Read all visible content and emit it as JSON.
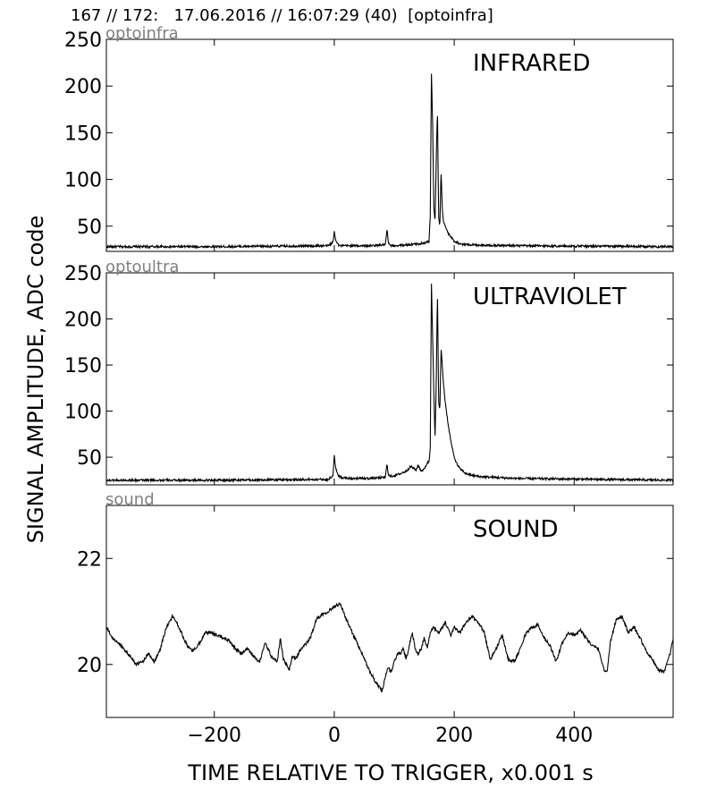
{
  "header": {
    "text": "167 // 172:   17.06.2016 // 16:07:29 (40)  [optoinfra]"
  },
  "figure": {
    "ylabel": "SIGNAL AMPLITUDE,  ADC code",
    "xlabel": "TIME RELATIVE TO TRIGGER,   x0.001 s"
  },
  "chart_data": [
    {
      "type": "line",
      "channel": "optoinfra",
      "title": "INFRARED",
      "xlim": [
        -380,
        565
      ],
      "ylim": [
        23,
        250
      ],
      "yticks": [
        50,
        100,
        150,
        200,
        250
      ],
      "xticks": [
        -200,
        0,
        200,
        400
      ],
      "show_xtick_labels": false,
      "baseline": 28,
      "noise": 1.2,
      "color": "#000000",
      "series": [
        {
          "x": [
            -380,
            -200,
            -10,
            -2,
            0,
            2,
            8,
            60,
            85,
            88,
            90,
            93,
            100,
            140,
            150,
            155,
            158,
            160,
            162,
            164,
            166,
            168,
            170,
            172,
            174,
            176,
            178,
            180,
            182,
            185,
            190,
            195,
            200,
            210,
            230,
            300,
            565
          ],
          "y": [
            28,
            28,
            29,
            33,
            44,
            36,
            29,
            29,
            30,
            46,
            33,
            29,
            29,
            31,
            32,
            33,
            34,
            60,
            215,
            160,
            70,
            55,
            120,
            176,
            60,
            50,
            110,
            70,
            55,
            50,
            42,
            38,
            34,
            31,
            30,
            29,
            28
          ]
        }
      ]
    },
    {
      "type": "line",
      "channel": "optoultra",
      "title": "ULTRAVIOLET",
      "xlim": [
        -380,
        565
      ],
      "ylim": [
        20,
        250
      ],
      "yticks": [
        50,
        100,
        150,
        200,
        250
      ],
      "xticks": [
        -200,
        0,
        200,
        400
      ],
      "show_xtick_labels": false,
      "baseline": 25,
      "noise": 1.2,
      "color": "#000000",
      "series": [
        {
          "x": [
            -380,
            -200,
            -10,
            -2,
            0,
            2,
            6,
            12,
            30,
            60,
            85,
            88,
            90,
            93,
            100,
            110,
            120,
            128,
            132,
            136,
            140,
            145,
            150,
            155,
            158,
            160,
            162,
            164,
            166,
            168,
            170,
            172,
            174,
            176,
            178,
            180,
            182,
            185,
            190,
            195,
            200,
            205,
            210,
            220,
            240,
            300,
            565
          ],
          "y": [
            25,
            25,
            26,
            30,
            52,
            40,
            30,
            28,
            27,
            27,
            28,
            43,
            32,
            29,
            30,
            32,
            35,
            40,
            38,
            36,
            41,
            35,
            37,
            44,
            45,
            60,
            240,
            180,
            120,
            70,
            130,
            232,
            110,
            100,
            168,
            150,
            130,
            110,
            85,
            65,
            50,
            42,
            37,
            32,
            29,
            27,
            25
          ]
        }
      ]
    },
    {
      "type": "line",
      "channel": "sound",
      "title": "SOUND",
      "xlim": [
        -380,
        565
      ],
      "ylim": [
        19.0,
        23.0
      ],
      "yticks": [
        20,
        22
      ],
      "xticks": [
        -200,
        0,
        200,
        400
      ],
      "xtick_labels": [
        "−200",
        "0",
        "200",
        "400"
      ],
      "show_xtick_labels": true,
      "noise": 0.03,
      "color": "#000000",
      "series": [
        {
          "x": [
            -380,
            -370,
            -355,
            -340,
            -330,
            -320,
            -310,
            -300,
            -290,
            -280,
            -270,
            -265,
            -255,
            -245,
            -235,
            -225,
            -215,
            -205,
            -195,
            -185,
            -175,
            -165,
            -155,
            -145,
            -135,
            -125,
            -115,
            -105,
            -95,
            -90,
            -85,
            -80,
            -75,
            -70,
            -65,
            -60,
            -55,
            -50,
            -40,
            -30,
            -20,
            -10,
            0,
            10,
            20,
            30,
            40,
            50,
            60,
            70,
            80,
            85,
            90,
            95,
            100,
            105,
            110,
            115,
            120,
            125,
            130,
            135,
            140,
            145,
            150,
            155,
            160,
            165,
            170,
            175,
            180,
            185,
            190,
            195,
            200,
            210,
            220,
            230,
            240,
            250,
            260,
            270,
            280,
            290,
            300,
            310,
            320,
            330,
            340,
            350,
            360,
            370,
            380,
            390,
            400,
            410,
            420,
            430,
            440,
            450,
            455,
            460,
            470,
            480,
            490,
            500,
            510,
            520,
            530,
            540,
            550,
            560,
            565
          ],
          "y": [
            20.7,
            20.5,
            20.35,
            20.15,
            20.0,
            20.05,
            20.2,
            20.05,
            20.3,
            20.7,
            20.9,
            20.85,
            20.6,
            20.35,
            20.25,
            20.4,
            20.6,
            20.6,
            20.55,
            20.5,
            20.45,
            20.3,
            20.2,
            20.3,
            20.15,
            20.05,
            20.4,
            20.15,
            20.05,
            20.5,
            20.1,
            20.0,
            19.9,
            20.15,
            20.1,
            20.2,
            20.3,
            20.35,
            20.5,
            20.85,
            20.95,
            21.0,
            21.1,
            21.15,
            20.85,
            20.6,
            20.35,
            20.1,
            19.85,
            19.65,
            19.5,
            19.75,
            19.95,
            19.85,
            20.05,
            20.2,
            20.2,
            20.3,
            20.1,
            20.35,
            20.6,
            20.3,
            20.2,
            20.3,
            20.5,
            20.3,
            20.6,
            20.7,
            20.65,
            20.6,
            20.7,
            20.8,
            20.65,
            20.55,
            20.7,
            20.6,
            20.8,
            20.9,
            20.8,
            20.6,
            20.1,
            20.3,
            20.55,
            20.1,
            20.05,
            20.3,
            20.6,
            20.7,
            20.75,
            20.5,
            20.35,
            20.05,
            20.4,
            20.6,
            20.55,
            20.65,
            20.5,
            20.35,
            20.3,
            19.9,
            19.85,
            20.4,
            20.85,
            20.9,
            20.6,
            20.7,
            20.5,
            20.25,
            20.1,
            19.9,
            19.85,
            20.2,
            20.5
          ]
        }
      ]
    }
  ]
}
